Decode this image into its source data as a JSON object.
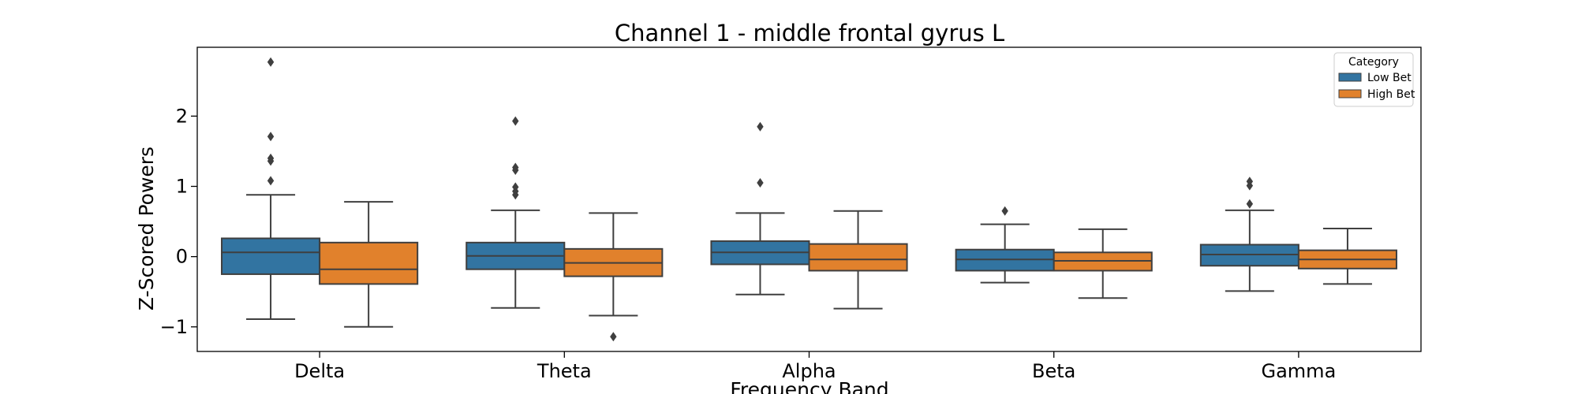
{
  "chart_data": {
    "type": "box",
    "title": "Channel 1 - middle frontal gyrus L",
    "xlabel": "Frequency Band",
    "ylabel": "Z-Scored Powers",
    "ylim": [
      -1.35,
      2.98
    ],
    "yticks": [
      -1,
      0,
      1,
      2
    ],
    "ytick_labels": [
      "−1",
      "0",
      "1",
      "2"
    ],
    "categories": [
      "Delta",
      "Theta",
      "Alpha",
      "Beta",
      "Gamma"
    ],
    "grid": false,
    "legend": {
      "title": "Category",
      "position": "top-right"
    },
    "series": [
      {
        "name": "Low Bet",
        "color": "#3274a1",
        "boxes": [
          {
            "whisker_low": -0.89,
            "q1": -0.25,
            "median": 0.06,
            "q3": 0.26,
            "whisker_high": 0.88,
            "outliers": [
              1.08,
              1.36,
              1.4,
              1.71,
              2.77
            ]
          },
          {
            "whisker_low": -0.73,
            "q1": -0.18,
            "median": 0.01,
            "q3": 0.2,
            "whisker_high": 0.66,
            "outliers": [
              0.88,
              0.93,
              0.99,
              1.23,
              1.27,
              1.93
            ]
          },
          {
            "whisker_low": -0.54,
            "q1": -0.11,
            "median": 0.06,
            "q3": 0.22,
            "whisker_high": 0.62,
            "outliers": [
              1.05,
              1.85
            ]
          },
          {
            "whisker_low": -0.37,
            "q1": -0.2,
            "median": -0.04,
            "q3": 0.1,
            "whisker_high": 0.46,
            "outliers": [
              0.65
            ]
          },
          {
            "whisker_low": -0.49,
            "q1": -0.13,
            "median": 0.03,
            "q3": 0.17,
            "whisker_high": 0.66,
            "outliers": [
              0.75,
              1.01,
              1.07
            ]
          }
        ]
      },
      {
        "name": "High Bet",
        "color": "#e1812c",
        "boxes": [
          {
            "whisker_low": -1.0,
            "q1": -0.39,
            "median": -0.18,
            "q3": 0.2,
            "whisker_high": 0.78,
            "outliers": []
          },
          {
            "whisker_low": -0.84,
            "q1": -0.28,
            "median": -0.09,
            "q3": 0.11,
            "whisker_high": 0.62,
            "outliers": [
              -1.14
            ]
          },
          {
            "whisker_low": -0.74,
            "q1": -0.2,
            "median": -0.04,
            "q3": 0.18,
            "whisker_high": 0.65,
            "outliers": []
          },
          {
            "whisker_low": -0.59,
            "q1": -0.2,
            "median": -0.06,
            "q3": 0.06,
            "whisker_high": 0.39,
            "outliers": []
          },
          {
            "whisker_low": -0.39,
            "q1": -0.17,
            "median": -0.04,
            "q3": 0.09,
            "whisker_high": 0.4,
            "outliers": []
          }
        ]
      }
    ]
  }
}
